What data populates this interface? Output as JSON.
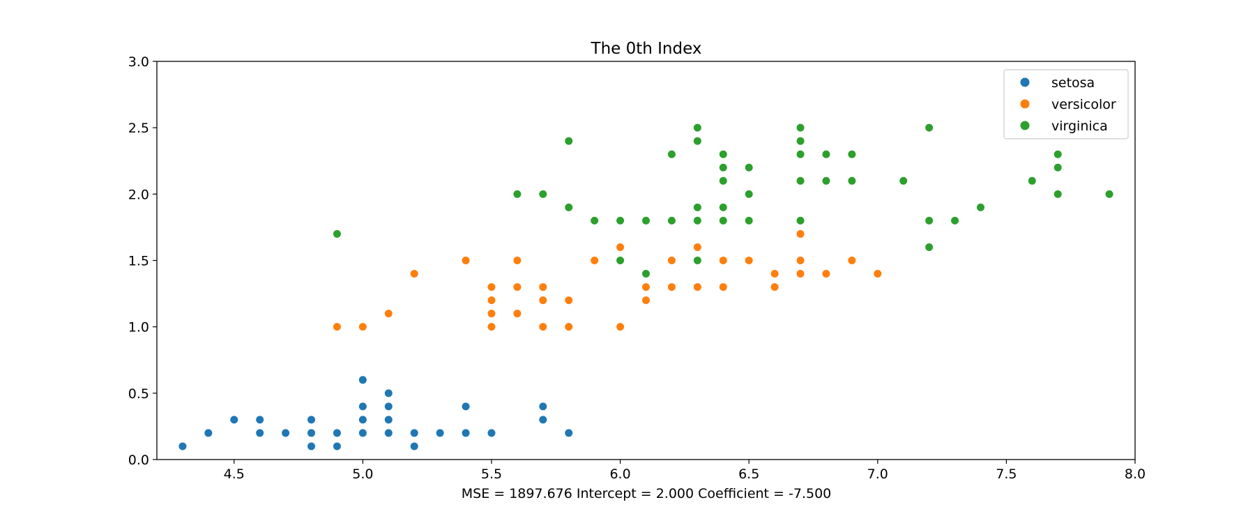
{
  "chart_data": {
    "type": "scatter",
    "title": "The 0th Index",
    "xlabel": "MSE = 1897.676   Intercept = 2.000   Coefficient = -7.500",
    "ylabel": "",
    "xlim": [
      4.2,
      8.0
    ],
    "ylim": [
      0.0,
      3.0
    ],
    "xticks": [
      "4.5",
      "5.0",
      "5.5",
      "6.0",
      "6.5",
      "7.0",
      "7.5",
      "8.0"
    ],
    "yticks": [
      "0.0",
      "0.5",
      "1.0",
      "1.5",
      "2.0",
      "2.5",
      "3.0"
    ],
    "grid": false,
    "legend_position": "top-right",
    "series": [
      {
        "name": "setosa",
        "color": "#1f77b4",
        "points": [
          [
            4.3,
            0.1
          ],
          [
            4.4,
            0.2
          ],
          [
            4.5,
            0.3
          ],
          [
            4.6,
            0.2
          ],
          [
            4.6,
            0.3
          ],
          [
            4.7,
            0.2
          ],
          [
            4.8,
            0.1
          ],
          [
            4.8,
            0.2
          ],
          [
            4.8,
            0.3
          ],
          [
            4.9,
            0.1
          ],
          [
            4.9,
            0.2
          ],
          [
            5.0,
            0.2
          ],
          [
            5.0,
            0.3
          ],
          [
            5.0,
            0.4
          ],
          [
            5.0,
            0.6
          ],
          [
            5.1,
            0.2
          ],
          [
            5.1,
            0.3
          ],
          [
            5.1,
            0.4
          ],
          [
            5.1,
            0.5
          ],
          [
            5.2,
            0.1
          ],
          [
            5.2,
            0.2
          ],
          [
            5.3,
            0.2
          ],
          [
            5.4,
            0.2
          ],
          [
            5.4,
            0.4
          ],
          [
            5.5,
            0.2
          ],
          [
            5.7,
            0.3
          ],
          [
            5.7,
            0.4
          ],
          [
            5.8,
            0.2
          ]
        ]
      },
      {
        "name": "versicolor",
        "color": "#ff7f0e",
        "points": [
          [
            4.9,
            1.0
          ],
          [
            5.0,
            1.0
          ],
          [
            5.1,
            1.1
          ],
          [
            5.2,
            1.4
          ],
          [
            5.4,
            1.5
          ],
          [
            5.5,
            1.0
          ],
          [
            5.5,
            1.1
          ],
          [
            5.5,
            1.2
          ],
          [
            5.5,
            1.3
          ],
          [
            5.6,
            1.1
          ],
          [
            5.6,
            1.3
          ],
          [
            5.6,
            1.5
          ],
          [
            5.7,
            1.0
          ],
          [
            5.7,
            1.2
          ],
          [
            5.7,
            1.3
          ],
          [
            5.8,
            1.0
          ],
          [
            5.8,
            1.2
          ],
          [
            5.9,
            1.5
          ],
          [
            6.0,
            1.0
          ],
          [
            6.0,
            1.6
          ],
          [
            6.1,
            1.2
          ],
          [
            6.1,
            1.3
          ],
          [
            6.2,
            1.3
          ],
          [
            6.2,
            1.5
          ],
          [
            6.3,
            1.3
          ],
          [
            6.3,
            1.6
          ],
          [
            6.4,
            1.3
          ],
          [
            6.4,
            1.5
          ],
          [
            6.5,
            1.5
          ],
          [
            6.6,
            1.3
          ],
          [
            6.6,
            1.4
          ],
          [
            6.7,
            1.4
          ],
          [
            6.7,
            1.5
          ],
          [
            6.7,
            1.7
          ],
          [
            6.8,
            1.4
          ],
          [
            6.9,
            1.5
          ],
          [
            7.0,
            1.4
          ]
        ]
      },
      {
        "name": "virginica",
        "color": "#2ca02c",
        "points": [
          [
            4.9,
            1.7
          ],
          [
            5.6,
            2.0
          ],
          [
            5.7,
            2.0
          ],
          [
            5.8,
            1.9
          ],
          [
            5.8,
            2.4
          ],
          [
            5.9,
            1.8
          ],
          [
            6.0,
            1.5
          ],
          [
            6.0,
            1.8
          ],
          [
            6.1,
            1.4
          ],
          [
            6.1,
            1.8
          ],
          [
            6.2,
            1.8
          ],
          [
            6.2,
            2.3
          ],
          [
            6.3,
            1.5
          ],
          [
            6.3,
            1.8
          ],
          [
            6.3,
            1.9
          ],
          [
            6.3,
            2.4
          ],
          [
            6.3,
            2.5
          ],
          [
            6.4,
            1.8
          ],
          [
            6.4,
            1.9
          ],
          [
            6.4,
            2.1
          ],
          [
            6.4,
            2.2
          ],
          [
            6.4,
            2.3
          ],
          [
            6.5,
            1.8
          ],
          [
            6.5,
            2.0
          ],
          [
            6.5,
            2.2
          ],
          [
            6.7,
            1.8
          ],
          [
            6.7,
            2.1
          ],
          [
            6.7,
            2.3
          ],
          [
            6.7,
            2.4
          ],
          [
            6.7,
            2.5
          ],
          [
            6.8,
            2.1
          ],
          [
            6.8,
            2.3
          ],
          [
            6.9,
            2.1
          ],
          [
            6.9,
            2.3
          ],
          [
            7.1,
            2.1
          ],
          [
            7.2,
            1.6
          ],
          [
            7.2,
            1.8
          ],
          [
            7.2,
            2.5
          ],
          [
            7.3,
            1.8
          ],
          [
            7.4,
            1.9
          ],
          [
            7.6,
            2.1
          ],
          [
            7.7,
            2.0
          ],
          [
            7.7,
            2.2
          ],
          [
            7.7,
            2.3
          ],
          [
            7.9,
            2.0
          ]
        ]
      }
    ]
  }
}
